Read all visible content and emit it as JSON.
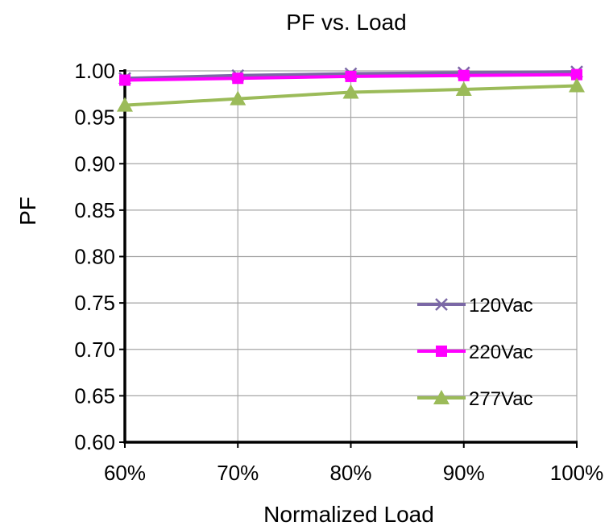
{
  "chart_data": {
    "type": "line",
    "title": "PF vs. Load",
    "xlabel": "Normalized Load",
    "ylabel": "PF",
    "categories": [
      "60%",
      "70%",
      "80%",
      "90%",
      "100%"
    ],
    "ylim": [
      0.6,
      1.0
    ],
    "ytick_step": 0.05,
    "yticks": [
      "0.60",
      "0.65",
      "0.70",
      "0.75",
      "0.80",
      "0.85",
      "0.90",
      "0.95",
      "1.00"
    ],
    "grid": true,
    "legend_position": "bottom-right",
    "series": [
      {
        "name": "120Vac",
        "values": [
          0.992,
          0.995,
          0.997,
          0.998,
          0.999
        ],
        "color": "#7B68A6",
        "marker": "x"
      },
      {
        "name": "220Vac",
        "values": [
          0.99,
          0.992,
          0.994,
          0.995,
          0.996
        ],
        "color": "#FF00FF",
        "marker": "square"
      },
      {
        "name": "277Vac",
        "values": [
          0.963,
          0.97,
          0.977,
          0.98,
          0.984
        ],
        "color": "#9BBB59",
        "marker": "triangle"
      }
    ]
  }
}
